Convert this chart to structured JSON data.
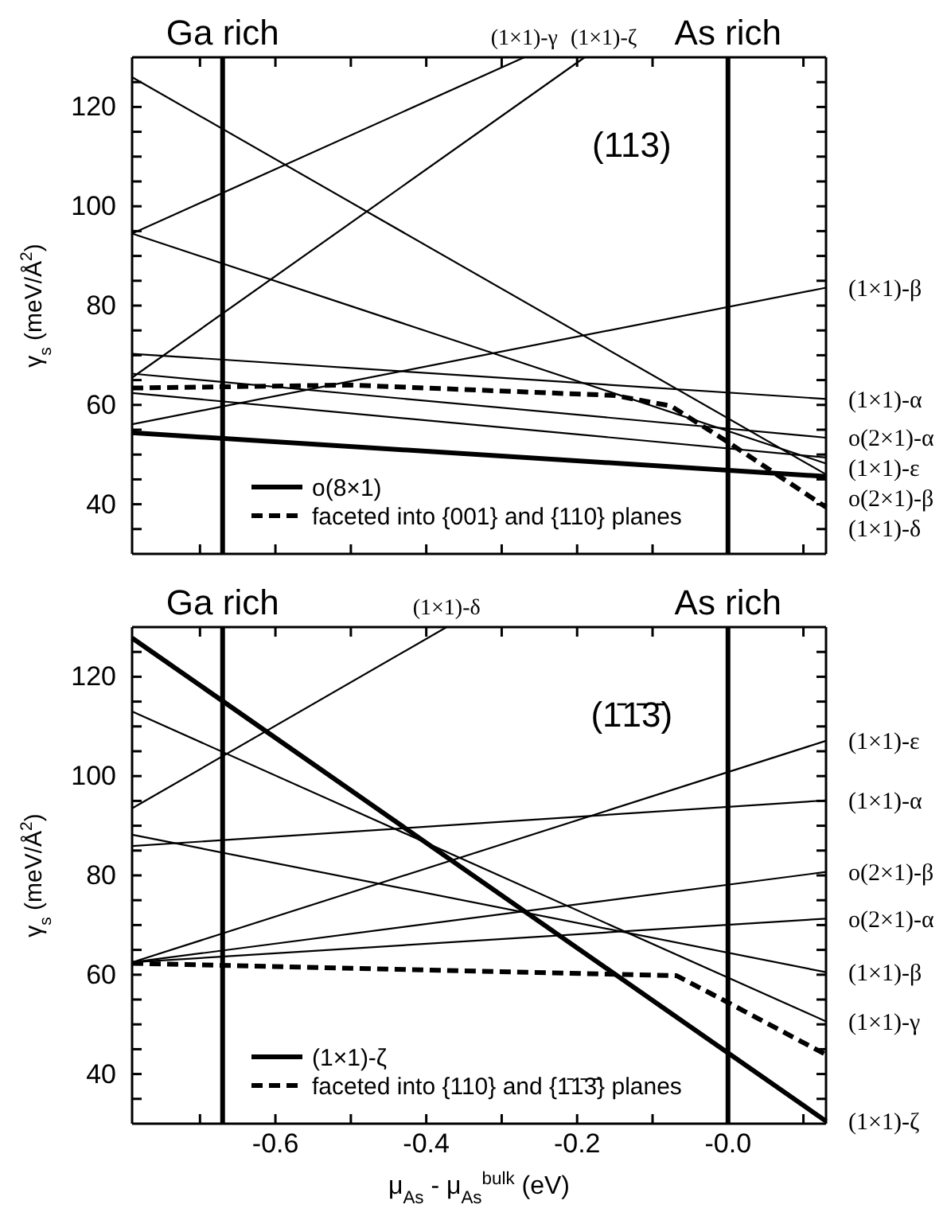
{
  "chart_data": [
    {
      "type": "line",
      "ylabel": "γ$_{s}$ (meV/Å$^{2}$)",
      "xlim": [
        -0.79,
        0.13
      ],
      "ylim": [
        30,
        130
      ],
      "xticks": [
        {
          "value": -0.7,
          "label": null
        },
        {
          "value": -0.6,
          "label": null
        },
        {
          "value": -0.5,
          "label": null
        },
        {
          "value": -0.4,
          "label": null
        },
        {
          "value": -0.3,
          "label": null
        },
        {
          "value": -0.2,
          "label": null
        },
        {
          "value": -0.1,
          "label": null
        },
        {
          "value": 0,
          "label": null
        },
        {
          "value": 0.1,
          "label": null
        }
      ],
      "yticks": [
        {
          "value": 35,
          "label": null
        },
        40,
        {
          "value": 45,
          "label": null
        },
        {
          "value": 50,
          "label": null
        },
        {
          "value": 55,
          "label": null
        },
        60,
        {
          "value": 65,
          "label": null
        },
        {
          "value": 70,
          "label": null
        },
        {
          "value": 75,
          "label": null
        },
        80,
        {
          "value": 85,
          "label": null
        },
        {
          "value": 90,
          "label": null
        },
        {
          "value": 95,
          "label": null
        },
        100,
        {
          "value": 105,
          "label": null
        },
        {
          "value": 110,
          "label": null
        },
        {
          "value": 115,
          "label": null
        },
        120,
        {
          "value": 125,
          "label": null
        }
      ],
      "tick_labels": "y",
      "grid": false,
      "legend": "bottom left",
      "marker": "none",
      "ref_lines": [
        {
          "axis": "x",
          "value": -0.67,
          "label": "Ga rich"
        },
        {
          "axis": "x",
          "value": 0,
          "label": "As rich"
        }
      ],
      "annotations": [
        "(113)",
        {
          "text": "(1×1)-γ",
          "x": -0.27,
          "y": 130
        },
        {
          "text": "(1×1)-ζ",
          "x": -0.19,
          "y": 130
        },
        {
          "text": "(1×1)-β",
          "x": 0.13,
          "y": 83.6
        },
        {
          "text": "(1×1)-α",
          "x": 0.13,
          "y": 61.2
        },
        {
          "text": "o(2×1)-α",
          "x": 0.13,
          "y": 53.4
        },
        {
          "text": "(1×1)-ε",
          "x": 0.13,
          "y": 49.4
        },
        {
          "text": "o(2×1)-β",
          "x": 0.13,
          "y": 48.2
        },
        {
          "text": "(1×1)-δ",
          "x": 0.13,
          "y": 46
        }
      ],
      "series": [
        {
          "color": "#000000",
          "x": [
            -0.79,
            0.13
          ],
          "values": [
            126,
            46
          ]
        },
        {
          "color": "#000000",
          "x": [
            -0.79,
            -0.27
          ],
          "values": [
            94.5,
            130
          ]
        },
        {
          "color": "#000000",
          "x": [
            -0.79,
            0.13
          ],
          "values": [
            94.5,
            48.2
          ]
        },
        {
          "color": "#000000",
          "x": [
            -0.79,
            -0.19
          ],
          "values": [
            65.5,
            130
          ]
        },
        {
          "color": "#000000",
          "x": [
            -0.79,
            0.13
          ],
          "values": [
            56.1,
            83.6
          ]
        },
        {
          "color": "#000000",
          "x": [
            -0.79,
            0.13
          ],
          "values": [
            70.3,
            61.2
          ]
        },
        {
          "color": "#000000",
          "x": [
            -0.79,
            0.13
          ],
          "values": [
            66.3,
            53.4
          ]
        },
        {
          "color": "#000000",
          "x": [
            -0.79,
            0.13
          ],
          "values": [
            62.4,
            49.4
          ]
        },
        {
          "name": "o(8×1)",
          "color": "#000000",
          "x": [
            -0.79,
            0.13
          ],
          "values": [
            54.4,
            45.6
          ]
        },
        {
          "name": "faceted into {001} and {110} planes",
          "color": "#000000",
          "line_style": "dashed",
          "x": [
            -0.79,
            -0.5,
            -0.15,
            -0.076,
            0,
            0.13
          ],
          "values": [
            63.4,
            64,
            61.9,
            59.8,
            52.5,
            39.4
          ]
        }
      ]
    },
    {
      "type": "line",
      "xlabel": "μ$_{As}$ - μ$_{As}$$^{bulk}$ (eV)",
      "ylabel": "γ$_{s}$ (meV/Å$^{2}$)",
      "xlim": [
        -0.79,
        0.13
      ],
      "ylim": [
        30,
        130
      ],
      "xticks": [
        {
          "value": -0.7,
          "label": null
        },
        -0.6,
        {
          "value": -0.5,
          "label": null
        },
        -0.4,
        {
          "value": -0.3,
          "label": null
        },
        -0.2,
        {
          "value": -0.1,
          "label": null
        },
        {
          "value": 0,
          "label": "-0.0"
        },
        {
          "value": 0.1,
          "label": null
        }
      ],
      "yticks": [
        {
          "value": 35,
          "label": null
        },
        40,
        {
          "value": 45,
          "label": null
        },
        {
          "value": 50,
          "label": null
        },
        {
          "value": 55,
          "label": null
        },
        60,
        {
          "value": 65,
          "label": null
        },
        {
          "value": 70,
          "label": null
        },
        {
          "value": 75,
          "label": null
        },
        80,
        {
          "value": 85,
          "label": null
        },
        {
          "value": 90,
          "label": null
        },
        {
          "value": 95,
          "label": null
        },
        100,
        {
          "value": 105,
          "label": null
        },
        {
          "value": 110,
          "label": null
        },
        {
          "value": 115,
          "label": null
        },
        120,
        {
          "value": 125,
          "label": null
        }
      ],
      "grid": false,
      "legend": "bottom left",
      "marker": "none",
      "ref_lines": [
        {
          "axis": "x",
          "value": -0.67,
          "label": "Ga rich"
        },
        {
          "axis": "x",
          "value": 0,
          "label": "As rich"
        }
      ],
      "annotations": [
        "(1̄1̄3̄)",
        {
          "text": "(1×1)-δ",
          "x": -0.373,
          "y": 130
        },
        {
          "text": "(1×1)-ε",
          "x": 0.13,
          "y": 107.1
        },
        {
          "text": "(1×1)-α",
          "x": 0.13,
          "y": 95.1
        },
        {
          "text": "o(2×1)-β",
          "x": 0.13,
          "y": 80.7
        },
        {
          "text": "o(2×1)-α",
          "x": 0.13,
          "y": 71.3
        },
        {
          "text": "(1×1)-β",
          "x": 0.13,
          "y": 60.5
        },
        {
          "text": "(1×1)-γ",
          "x": 0.13,
          "y": 50.6
        },
        {
          "text": "(1×1)-ζ",
          "x": 0.13,
          "y": 30.5
        }
      ],
      "series": [
        {
          "color": "#000000",
          "x": [
            -0.79,
            -0.373
          ],
          "values": [
            93.5,
            130
          ]
        },
        {
          "color": "#000000",
          "x": [
            -0.79,
            0.13
          ],
          "values": [
            113,
            50.6
          ]
        },
        {
          "color": "#000000",
          "x": [
            -0.79,
            0.13
          ],
          "values": [
            88.2,
            60.5
          ]
        },
        {
          "color": "#000000",
          "x": [
            -0.79,
            0.13
          ],
          "values": [
            85.9,
            95.1
          ]
        },
        {
          "color": "#000000",
          "x": [
            -0.79,
            0.13
          ],
          "values": [
            62.5,
            107.1
          ]
        },
        {
          "color": "#000000",
          "x": [
            -0.79,
            0.13
          ],
          "values": [
            62.5,
            80.7
          ]
        },
        {
          "color": "#000000",
          "x": [
            -0.79,
            0.13
          ],
          "values": [
            62.5,
            71.3
          ]
        },
        {
          "name": "(1×1)-ζ",
          "color": "#000000",
          "x": [
            -0.79,
            0.13
          ],
          "values": [
            127.8,
            30.5
          ]
        },
        {
          "name": "faceted into {110} and {1̄1̄3̄} planes",
          "color": "#000000",
          "line_style": "dashed",
          "x": [
            -0.79,
            -0.068,
            0,
            0.13
          ],
          "values": [
            62.3,
            59.8,
            54.4,
            43.9
          ]
        }
      ]
    }
  ]
}
